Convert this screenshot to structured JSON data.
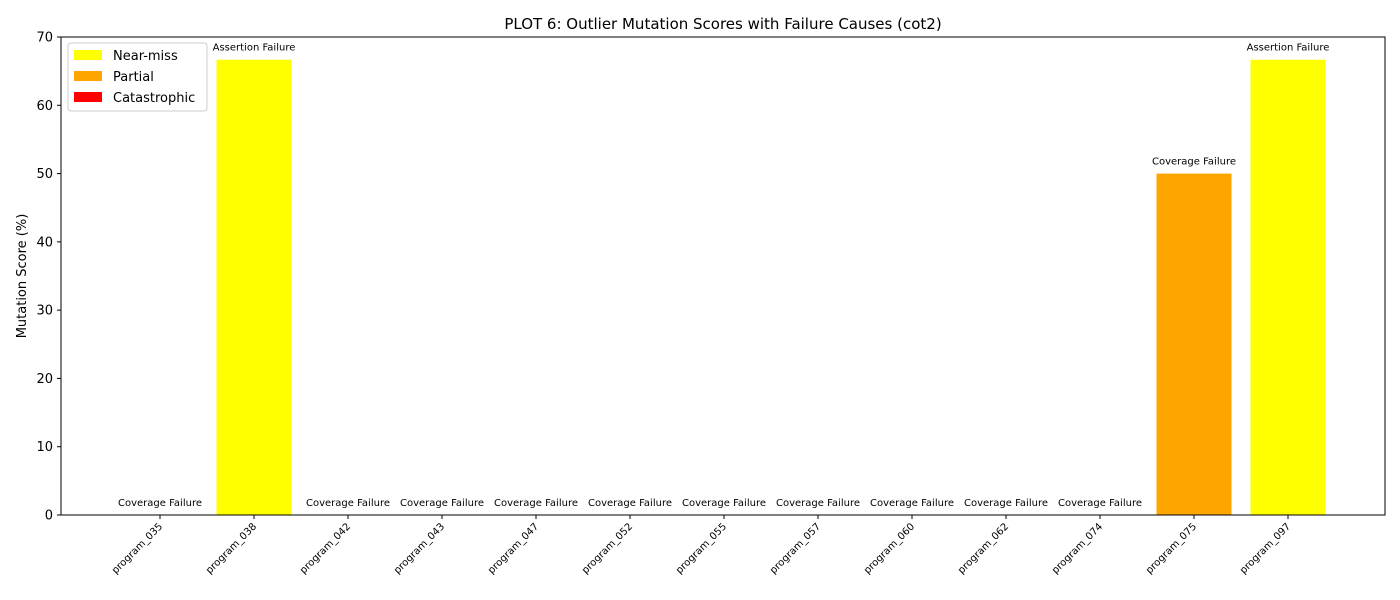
{
  "chart_data": {
    "type": "bar",
    "title": "PLOT 6: Outlier Mutation Scores with Failure Causes (cot2)",
    "xlabel": "",
    "ylabel": "Mutation Score (%)",
    "ylim": [
      0,
      70
    ],
    "yticks": [
      0,
      10,
      20,
      30,
      40,
      50,
      60,
      70
    ],
    "categories": [
      "program_035",
      "program_038",
      "program_042",
      "program_043",
      "program_047",
      "program_052",
      "program_055",
      "program_057",
      "program_060",
      "program_062",
      "program_074",
      "program_075",
      "program_097"
    ],
    "values": [
      0,
      66.67,
      0,
      0,
      0,
      0,
      0,
      0,
      0,
      0,
      0,
      50,
      66.67
    ],
    "annotations": [
      "Coverage Failure",
      "Assertion Failure",
      "Coverage Failure",
      "Coverage Failure",
      "Coverage Failure",
      "Coverage Failure",
      "Coverage Failure",
      "Coverage Failure",
      "Coverage Failure",
      "Coverage Failure",
      "Coverage Failure",
      "Coverage Failure",
      "Assertion Failure"
    ],
    "bar_colors": [
      "#ff0000",
      "#ffff00",
      "#ff0000",
      "#ff0000",
      "#ff0000",
      "#ff0000",
      "#ff0000",
      "#ff0000",
      "#ff0000",
      "#ff0000",
      "#ff0000",
      "#ffa500",
      "#ffff00"
    ],
    "legend": {
      "placement": "top-left",
      "entries": [
        {
          "label": "Near-miss",
          "color": "#ffff00"
        },
        {
          "label": "Partial",
          "color": "#ffa500"
        },
        {
          "label": "Catastrophic",
          "color": "#ff0000"
        }
      ]
    },
    "grid": false
  }
}
